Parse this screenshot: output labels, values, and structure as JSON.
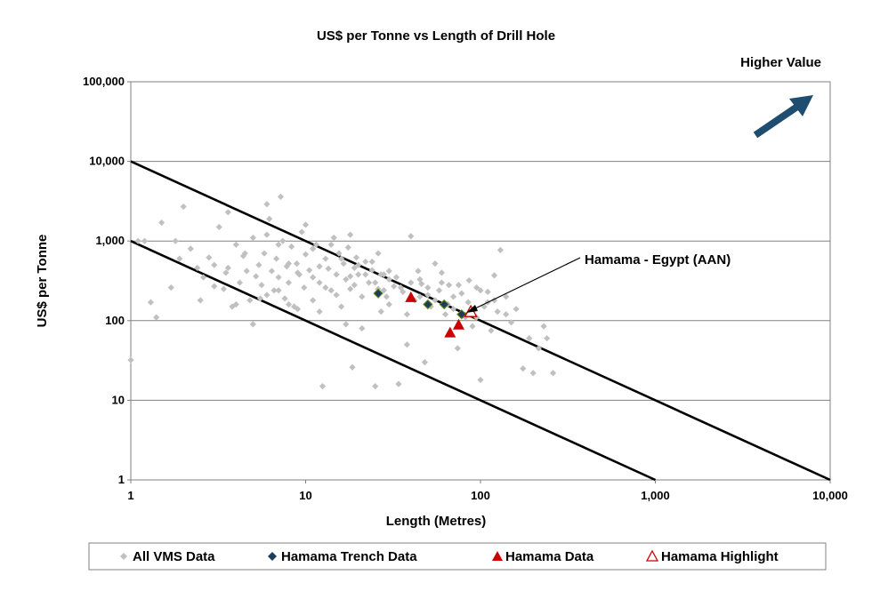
{
  "chart_data": {
    "type": "scatter",
    "title": "US$ per Tonne vs Length of Drill Hole",
    "xlabel": "Length (Metres)",
    "ylabel": "US$ per Tonne",
    "x_scale": "log",
    "y_scale": "log",
    "xlim": [
      1,
      10000
    ],
    "ylim": [
      1,
      100000
    ],
    "x_ticks": [
      "1",
      "10",
      "100",
      "1,000",
      "10,000"
    ],
    "y_ticks": [
      "1",
      "10",
      "100",
      "1,000",
      "10,000",
      "100,000"
    ],
    "grid": "horizontal",
    "legend_position": "bottom",
    "annotations": {
      "higher_value": "Higher Value",
      "hamama_label": "Hamama - Egypt (AAN)"
    },
    "reference_lines": [
      {
        "x": [
          1,
          10000
        ],
        "y": [
          10000,
          1
        ]
      },
      {
        "x": [
          1,
          1000
        ],
        "y": [
          1000,
          1
        ]
      }
    ],
    "series": [
      {
        "name": "All VMS Data",
        "color": "#c0c0c0",
        "marker": "diamond",
        "points": [
          [
            1.0,
            32
          ],
          [
            1.1,
            1000
          ],
          [
            1.2,
            1000
          ],
          [
            1.3,
            170
          ],
          [
            1.4,
            110
          ],
          [
            1.5,
            1700
          ],
          [
            1.7,
            260
          ],
          [
            1.8,
            1000
          ],
          [
            1.9,
            600
          ],
          [
            2.0,
            2700
          ],
          [
            2.2,
            800
          ],
          [
            2.4,
            460
          ],
          [
            2.6,
            350
          ],
          [
            2.8,
            620
          ],
          [
            3.0,
            270
          ],
          [
            3.2,
            1500
          ],
          [
            3.4,
            250
          ],
          [
            3.6,
            460
          ],
          [
            3.6,
            2300
          ],
          [
            3.8,
            150
          ],
          [
            4.0,
            900
          ],
          [
            4.2,
            300
          ],
          [
            4.4,
            650
          ],
          [
            4.6,
            420
          ],
          [
            4.8,
            180
          ],
          [
            5.0,
            1100
          ],
          [
            5.2,
            360
          ],
          [
            5.4,
            500
          ],
          [
            5.6,
            280
          ],
          [
            5.8,
            700
          ],
          [
            6.0,
            2900
          ],
          [
            6.2,
            1900
          ],
          [
            6.4,
            420
          ],
          [
            6.6,
            240
          ],
          [
            6.8,
            600
          ],
          [
            7.0,
            350
          ],
          [
            7.2,
            3600
          ],
          [
            7.4,
            1000
          ],
          [
            7.6,
            190
          ],
          [
            7.8,
            480
          ],
          [
            8.0,
            300
          ],
          [
            8.3,
            850
          ],
          [
            8.6,
            150
          ],
          [
            8.9,
            520
          ],
          [
            9.2,
            380
          ],
          [
            9.5,
            1300
          ],
          [
            9.8,
            260
          ],
          [
            10,
            680
          ],
          [
            10.5,
            430
          ],
          [
            11,
            180
          ],
          [
            11.5,
            900
          ],
          [
            12,
            300
          ],
          [
            12.5,
            15
          ],
          [
            13,
            600
          ],
          [
            13.5,
            450
          ],
          [
            14,
            240
          ],
          [
            14.5,
            1100
          ],
          [
            15,
            380
          ],
          [
            15.5,
            700
          ],
          [
            16,
            150
          ],
          [
            16.5,
            520
          ],
          [
            17,
            330
          ],
          [
            17.5,
            830
          ],
          [
            18,
            250
          ],
          [
            18.5,
            26
          ],
          [
            19,
            460
          ],
          [
            19.5,
            620
          ],
          [
            20,
            380
          ],
          [
            21,
            200
          ],
          [
            22,
            550
          ],
          [
            23,
            300
          ],
          [
            24,
            430
          ],
          [
            25,
            15
          ],
          [
            26,
            250
          ],
          [
            27,
            130
          ],
          [
            28,
            380
          ],
          [
            29,
            200
          ],
          [
            30,
            330
          ],
          [
            32,
            270
          ],
          [
            34,
            16
          ],
          [
            36,
            230
          ],
          [
            38,
            50
          ],
          [
            40,
            1150
          ],
          [
            42,
            180
          ],
          [
            44,
            420
          ],
          [
            46,
            290
          ],
          [
            48,
            30
          ],
          [
            50,
            210
          ],
          [
            52,
            150
          ],
          [
            55,
            520
          ],
          [
            58,
            240
          ],
          [
            60,
            400
          ],
          [
            63,
            120
          ],
          [
            66,
            280
          ],
          [
            70,
            200
          ],
          [
            74,
            45
          ],
          [
            78,
            220
          ],
          [
            82,
            110
          ],
          [
            86,
            320
          ],
          [
            90,
            85
          ],
          [
            95,
            260
          ],
          [
            100,
            18
          ],
          [
            105,
            150
          ],
          [
            110,
            230
          ],
          [
            115,
            75
          ],
          [
            120,
            370
          ],
          [
            125,
            130
          ],
          [
            130,
            770
          ],
          [
            140,
            200
          ],
          [
            150,
            95
          ],
          [
            160,
            140
          ],
          [
            175,
            25
          ],
          [
            190,
            60
          ],
          [
            200,
            22
          ],
          [
            215,
            45
          ],
          [
            230,
            85
          ],
          [
            240,
            60
          ],
          [
            260,
            22
          ],
          [
            6,
            210
          ],
          [
            5,
            90
          ],
          [
            4,
            160
          ],
          [
            3,
            500
          ],
          [
            9,
            140
          ],
          [
            11,
            800
          ],
          [
            7,
            240
          ],
          [
            8,
            520
          ],
          [
            12,
            480
          ],
          [
            15,
            210
          ],
          [
            18,
            360
          ],
          [
            20,
            500
          ],
          [
            22,
            380
          ],
          [
            25,
            300
          ],
          [
            28,
            240
          ],
          [
            30,
            420
          ],
          [
            35,
            260
          ],
          [
            40,
            300
          ],
          [
            45,
            200
          ],
          [
            55,
            180
          ],
          [
            65,
            160
          ],
          [
            70,
            140
          ],
          [
            80,
            120
          ],
          [
            85,
            170
          ],
          [
            95,
            110
          ],
          [
            120,
            180
          ],
          [
            140,
            120
          ],
          [
            6,
            1200
          ],
          [
            10,
            1600
          ],
          [
            14,
            900
          ],
          [
            18,
            1200
          ],
          [
            9,
            400
          ],
          [
            13,
            260
          ],
          [
            16,
            600
          ],
          [
            24,
            550
          ],
          [
            26,
            700
          ],
          [
            30,
            160
          ],
          [
            38,
            120
          ],
          [
            4.5,
            700
          ],
          [
            5.5,
            190
          ],
          [
            7,
            900
          ],
          [
            8,
            160
          ],
          [
            12,
            130
          ],
          [
            17,
            90
          ],
          [
            21,
            80
          ],
          [
            3.5,
            400
          ],
          [
            2.5,
            180
          ],
          [
            11,
            350
          ],
          [
            19,
            280
          ],
          [
            27,
            380
          ],
          [
            33,
            350
          ],
          [
            45,
            330
          ],
          [
            50,
            260
          ],
          [
            60,
            300
          ],
          [
            75,
            280
          ],
          [
            100,
            240
          ],
          [
            110,
            170
          ]
        ]
      },
      {
        "name": "Hamama Trench Data",
        "color": "#1e3d59",
        "marker": "diamond",
        "points": [
          [
            26,
            220
          ],
          [
            50,
            160
          ],
          [
            62,
            160
          ],
          [
            78,
            120
          ]
        ]
      },
      {
        "name": "Hamama Data",
        "color": "#cc0000",
        "marker": "triangle",
        "points": [
          [
            40,
            195
          ],
          [
            67,
            70
          ],
          [
            75,
            88
          ]
        ]
      },
      {
        "name": "Hamama Highlight",
        "color": "#cc0000",
        "marker": "triangle-open",
        "points": [
          [
            88,
            128
          ]
        ]
      }
    ]
  }
}
